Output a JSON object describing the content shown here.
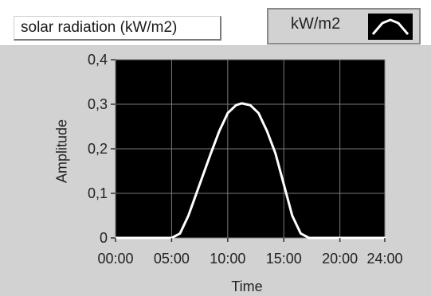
{
  "title_label": "solar radiation (kW/m2)",
  "legend": {
    "label": "kW/m2"
  },
  "colors": {
    "plot_bg": "#000000",
    "grid": "#7a7a7a",
    "series": "#ffffff",
    "panel": "#d2d2d2"
  },
  "chart_data": {
    "type": "line",
    "title": "",
    "xlabel": "Time",
    "ylabel": "Amplitude",
    "xlim": [
      "00:00",
      "24:00"
    ],
    "ylim": [
      0,
      0.4
    ],
    "grid": true,
    "legend_placement": "top-right",
    "x_ticks": [
      "00:00",
      "05:00",
      "10:00",
      "15:00",
      "20:00",
      "24:00"
    ],
    "y_ticks": [
      "0",
      "0,1",
      "0,2",
      "0,3",
      "0,4"
    ],
    "series": [
      {
        "name": "kW/m2",
        "x": [
          "00:00",
          "05:00",
          "05:45",
          "06:30",
          "07:30",
          "08:30",
          "09:15",
          "10:00",
          "10:45",
          "11:15",
          "12:00",
          "12:45",
          "13:30",
          "14:15",
          "15:00",
          "15:45",
          "16:30",
          "17:15",
          "24:00"
        ],
        "y": [
          0,
          0,
          0.01,
          0.05,
          0.12,
          0.19,
          0.24,
          0.28,
          0.298,
          0.302,
          0.298,
          0.28,
          0.24,
          0.19,
          0.12,
          0.05,
          0.01,
          0,
          0
        ]
      }
    ]
  }
}
